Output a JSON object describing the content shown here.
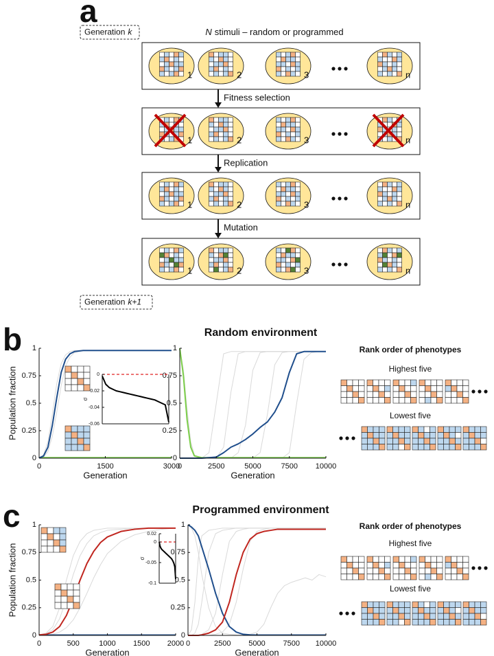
{
  "panel_a": {
    "letter": "a",
    "generation_start": {
      "text": "Generation",
      "variable": "k"
    },
    "generation_end": {
      "text": "Generation",
      "variable": "k+1"
    },
    "title": {
      "variable": "N",
      "text": "stimuli – random or programmed"
    },
    "steps": [
      "Fitness selection",
      "Replication",
      "Mutation"
    ],
    "organism_labels": [
      "1",
      "2",
      "3",
      "n"
    ]
  },
  "panel_b": {
    "letter": "b",
    "title": "Random environment",
    "rank_title": "Rank order of phenotypes",
    "highest": "Highest five",
    "lowest": "Lowest five"
  },
  "panel_c": {
    "letter": "c",
    "title": "Programmed environment",
    "rank_title": "Rank order of phenotypes",
    "highest": "Highest five",
    "lowest": "Lowest five"
  },
  "chart_data": [
    {
      "type": "line",
      "xlabel": "Generation",
      "ylabel": "Population fraction",
      "x": [
        0,
        100,
        200,
        300,
        400,
        500,
        600,
        700,
        800,
        1000,
        1500,
        2000,
        2500,
        3000
      ],
      "xlim": [
        0,
        3000
      ],
      "xticks": [
        0,
        1500,
        3000
      ],
      "ylim": [
        0,
        1
      ],
      "yticks": [
        0,
        0.25,
        0.5,
        0.75,
        1
      ],
      "series": [
        {
          "color": "#d9d9d9",
          "values": [
            0.002,
            0.03,
            0.15,
            0.4,
            0.68,
            0.86,
            0.94,
            0.97,
            0.98,
            0.98,
            0.98,
            0.98,
            0.98,
            0.98
          ]
        },
        {
          "color": "#d9d9d9",
          "values": [
            0.001,
            0.01,
            0.06,
            0.2,
            0.42,
            0.66,
            0.84,
            0.92,
            0.96,
            0.98,
            0.98,
            0.98,
            0.98,
            0.98
          ]
        },
        {
          "color": "#7ccf4a",
          "values": [
            0.005,
            0.005,
            0.005,
            0.005,
            0.005,
            0.005,
            0.005,
            0.005,
            0.005,
            0.005,
            0.005,
            0.005,
            0.005,
            0.005
          ]
        },
        {
          "color": "#1f4e8c",
          "values": [
            0.002,
            0.02,
            0.1,
            0.3,
            0.55,
            0.78,
            0.9,
            0.95,
            0.97,
            0.98,
            0.98,
            0.98,
            0.98,
            0.98
          ]
        }
      ]
    },
    {
      "type": "line",
      "xlabel": "Generation",
      "x": [
        0,
        250,
        500,
        750,
        1000,
        1500,
        2000,
        2500,
        3000,
        3500,
        4000,
        4500,
        5000,
        5500,
        6000,
        6500,
        7000,
        7500,
        8000,
        8500,
        9000,
        9500,
        10000
      ],
      "xlim": [
        0,
        10000
      ],
      "xticks": [
        0,
        2500,
        5000,
        7500,
        10000
      ],
      "ylim": [
        0,
        1
      ],
      "yticks": [
        0,
        0.25,
        0.5,
        0.75,
        1
      ],
      "series": [
        {
          "color": "#d9d9d9",
          "values": [
            1,
            0.8,
            0.45,
            0.15,
            0.03,
            0,
            0.05,
            0.5,
            0.95,
            0.97,
            0.97,
            0.97,
            0.97,
            0.97,
            0.97,
            0.97,
            0.97,
            0.97,
            0.97,
            0.97,
            0.97,
            0.97,
            0.97
          ]
        },
        {
          "color": "#d9d9d9",
          "values": [
            1,
            0.78,
            0.4,
            0.12,
            0.02,
            0,
            0,
            0,
            0.1,
            0.6,
            0.95,
            0.97,
            0.97,
            0.97,
            0.97,
            0.97,
            0.97,
            0.97,
            0.97,
            0.97,
            0.97,
            0.97,
            0.97
          ]
        },
        {
          "color": "#d9d9d9",
          "values": [
            1,
            0.8,
            0.42,
            0.14,
            0.03,
            0,
            0,
            0,
            0,
            0,
            0.05,
            0.3,
            0.8,
            0.96,
            0.97,
            0.97,
            0.97,
            0.97,
            0.97,
            0.97,
            0.97,
            0.97,
            0.97
          ]
        },
        {
          "color": "#d9d9d9",
          "values": [
            1,
            0.77,
            0.38,
            0.1,
            0.02,
            0,
            0,
            0,
            0,
            0,
            0,
            0,
            0,
            0.05,
            0.4,
            0.85,
            0.96,
            0.97,
            0.97,
            0.97,
            0.97,
            0.97,
            0.97
          ]
        },
        {
          "color": "#d9d9d9",
          "values": [
            1,
            0.79,
            0.41,
            0.13,
            0.02,
            0,
            0,
            0,
            0,
            0,
            0,
            0,
            0,
            0,
            0,
            0,
            0,
            0.05,
            0.5,
            0.9,
            0.96,
            0.97,
            0.97
          ]
        },
        {
          "color": "#7ccf4a",
          "values": [
            1,
            0.75,
            0.35,
            0.1,
            0.02,
            0.005,
            0.005,
            0.005,
            0.005,
            0.005,
            0.005,
            0.005,
            0.005,
            0.005,
            0.005,
            0.005,
            0.005,
            0.005,
            0.005,
            0.005,
            0.005,
            0.005,
            0.005
          ]
        },
        {
          "color": "#1f4e8c",
          "values": [
            0,
            0,
            0,
            0,
            0,
            0,
            0.005,
            0.01,
            0.05,
            0.1,
            0.13,
            0.17,
            0.22,
            0.28,
            0.33,
            0.42,
            0.55,
            0.78,
            0.95,
            0.97,
            0.97,
            0.97,
            0.97
          ]
        }
      ]
    },
    {
      "type": "line",
      "ylabel": "σ",
      "x": [
        1,
        2,
        3,
        4,
        5,
        6,
        7,
        8,
        9,
        10,
        11,
        12,
        13,
        14,
        15,
        16,
        17,
        18,
        19,
        20
      ],
      "xlim": [
        1,
        20
      ],
      "ylim": [
        -0.06,
        0
      ],
      "yticks": [
        -0.06,
        -0.04,
        -0.02,
        0
      ],
      "reference_line": 0,
      "series": [
        {
          "color": "#000000",
          "values": [
            -0.002,
            -0.012,
            -0.016,
            -0.018,
            -0.02,
            -0.021,
            -0.022,
            -0.023,
            -0.024,
            -0.025,
            -0.026,
            -0.027,
            -0.028,
            -0.029,
            -0.03,
            -0.031,
            -0.033,
            -0.035,
            -0.037,
            -0.058
          ]
        }
      ]
    },
    {
      "type": "line",
      "xlabel": "Generation",
      "ylabel": "Population fraction",
      "x": [
        0,
        100,
        200,
        300,
        400,
        500,
        600,
        700,
        800,
        900,
        1000,
        1200,
        1400,
        1600,
        1800,
        2000
      ],
      "xlim": [
        0,
        2000
      ],
      "xticks": [
        0,
        500,
        1000,
        1500,
        2000
      ],
      "ylim": [
        0,
        1
      ],
      "yticks": [
        0,
        0.25,
        0.5,
        0.75,
        1
      ],
      "series": [
        {
          "color": "#d9d9d9",
          "values": [
            0.005,
            0.02,
            0.08,
            0.25,
            0.5,
            0.72,
            0.85,
            0.92,
            0.95,
            0.96,
            0.97,
            0.97,
            0.97,
            0.97,
            0.97,
            0.97
          ]
        },
        {
          "color": "#d9d9d9",
          "values": [
            0.005,
            0.015,
            0.05,
            0.15,
            0.33,
            0.55,
            0.72,
            0.83,
            0.9,
            0.93,
            0.95,
            0.96,
            0.97,
            0.97,
            0.97,
            0.97
          ]
        },
        {
          "color": "#d9d9d9",
          "values": [
            0.003,
            0.005,
            0.01,
            0.03,
            0.07,
            0.14,
            0.25,
            0.38,
            0.52,
            0.64,
            0.74,
            0.85,
            0.91,
            0.94,
            0.96,
            0.97
          ]
        },
        {
          "color": "#1f4e8c",
          "values": [
            0.003,
            0.003,
            0.003,
            0.003,
            0.003,
            0.003,
            0.003,
            0.003,
            0.003,
            0.003,
            0.003,
            0.003,
            0.003,
            0.003,
            0.003,
            0.003
          ]
        },
        {
          "color": "#c0261f",
          "values": [
            0.005,
            0.01,
            0.03,
            0.08,
            0.18,
            0.33,
            0.5,
            0.65,
            0.76,
            0.84,
            0.89,
            0.94,
            0.96,
            0.97,
            0.97,
            0.97
          ]
        }
      ]
    },
    {
      "type": "line",
      "xlabel": "Generation",
      "x": [
        0,
        250,
        500,
        750,
        1000,
        1500,
        2000,
        2500,
        3000,
        3500,
        4000,
        4500,
        5000,
        5500,
        6000,
        6500,
        7000,
        7500,
        8000,
        8500,
        9000,
        9500,
        10000
      ],
      "xlim": [
        0,
        10000
      ],
      "xticks": [
        0,
        2500,
        5000,
        7500,
        10000
      ],
      "ylim": [
        0,
        1
      ],
      "yticks": [
        0,
        0.25,
        0.5,
        0.75,
        1
      ],
      "series": [
        {
          "color": "#d9d9d9",
          "values": [
            0,
            0.05,
            0.3,
            0.7,
            0.9,
            0.95,
            0.96,
            0.97,
            0.97,
            0.97,
            0.97,
            0.97,
            0.97,
            0.97,
            0.97,
            0.97,
            0.97,
            0.97,
            0.97,
            0.97,
            0.97,
            0.97,
            0.97
          ]
        },
        {
          "color": "#d9d9d9",
          "values": [
            0,
            0,
            0.02,
            0.1,
            0.3,
            0.75,
            0.92,
            0.95,
            0.96,
            0.97,
            0.97,
            0.97,
            0.97,
            0.97,
            0.97,
            0.97,
            0.97,
            0.97,
            0.97,
            0.97,
            0.97,
            0.97,
            0.97
          ]
        },
        {
          "color": "#d9d9d9",
          "values": [
            0,
            0,
            0,
            0,
            0.01,
            0.05,
            0.2,
            0.55,
            0.85,
            0.94,
            0.96,
            0.97,
            0.97,
            0.97,
            0.97,
            0.97,
            0.97,
            0.97,
            0.97,
            0.97,
            0.97,
            0.97,
            0.97
          ]
        },
        {
          "color": "#d9d9d9",
          "values": [
            0,
            0,
            0,
            0,
            0,
            0,
            0.01,
            0.03,
            0.1,
            0.3,
            0.6,
            0.85,
            0.94,
            0.96,
            0.97,
            0.97,
            0.97,
            0.97,
            0.97,
            0.97,
            0.97,
            0.97,
            0.97
          ]
        },
        {
          "color": "#d9d9d9",
          "values": [
            0,
            0,
            0,
            0,
            0,
            0,
            0,
            0,
            0,
            0,
            0,
            0.01,
            0.03,
            0.1,
            0.25,
            0.38,
            0.45,
            0.48,
            0.5,
            0.52,
            0.5,
            0.55,
            0.53
          ]
        },
        {
          "color": "#d9d9d9",
          "values": [
            1,
            0.97,
            0.9,
            0.75,
            0.55,
            0.25,
            0.08,
            0.02,
            0.01,
            0.005,
            0.003,
            0.003,
            0.003,
            0.003,
            0.003,
            0.003,
            0.003,
            0.003,
            0.003,
            0.003,
            0.003,
            0.003,
            0.003
          ]
        },
        {
          "color": "#1f4e8c",
          "values": [
            1,
            0.98,
            0.95,
            0.9,
            0.8,
            0.6,
            0.38,
            0.2,
            0.08,
            0.03,
            0.01,
            0.005,
            0.003,
            0.003,
            0.003,
            0.003,
            0.003,
            0.003,
            0.003,
            0.003,
            0.003,
            0.003,
            0.003
          ]
        },
        {
          "color": "#c0261f",
          "values": [
            0,
            0,
            0,
            0,
            0.005,
            0.02,
            0.05,
            0.12,
            0.3,
            0.55,
            0.75,
            0.87,
            0.92,
            0.94,
            0.95,
            0.96,
            0.96,
            0.96,
            0.96,
            0.96,
            0.96,
            0.96,
            0.96
          ]
        }
      ]
    },
    {
      "type": "line",
      "ylabel": "σ",
      "x": [
        1,
        2,
        3,
        4,
        5,
        6,
        7,
        8,
        9,
        10,
        11,
        12,
        13,
        14,
        15,
        16,
        17,
        18,
        19,
        20
      ],
      "xlim": [
        1,
        20
      ],
      "ylim": [
        -0.1,
        0.02
      ],
      "yticks": [
        -0.1,
        -0.05,
        0,
        0.02
      ],
      "reference_line": 0,
      "series": [
        {
          "color": "#000000",
          "values": [
            0,
            -0.01,
            -0.015,
            -0.018,
            -0.02,
            -0.022,
            -0.024,
            -0.026,
            -0.028,
            -0.03,
            -0.032,
            -0.034,
            -0.036,
            -0.038,
            -0.04,
            -0.043,
            -0.047,
            -0.052,
            -0.06,
            -0.09
          ]
        }
      ]
    }
  ]
}
